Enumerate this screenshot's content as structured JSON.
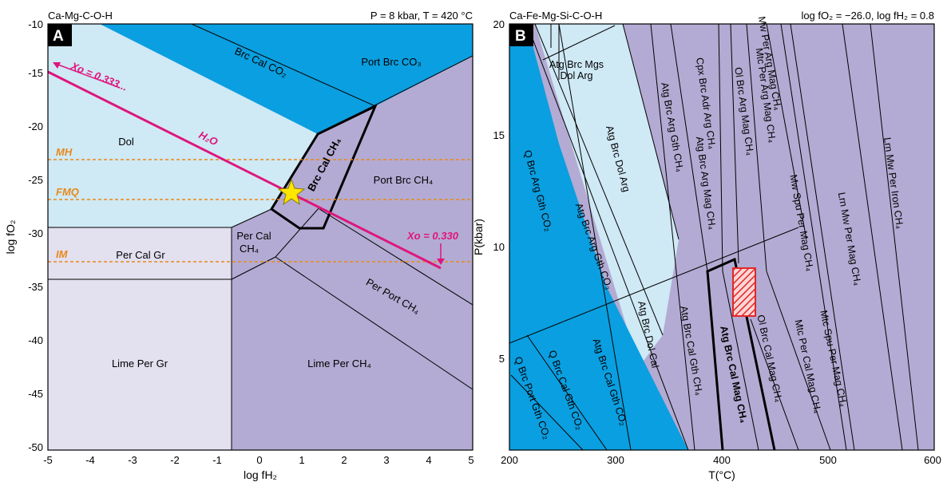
{
  "panel_a": {
    "tag": "A",
    "system": "Ca-Mg-C-O-H",
    "conditions": "P = 8 kbar, T = 420 °C",
    "x_axis_label": "log fH₂",
    "y_axis_label": "log fO₂",
    "x_ticks": [
      "-5",
      "-4",
      "-3",
      "-2",
      "-1",
      "0",
      "1",
      "2",
      "3",
      "4",
      "5"
    ],
    "y_ticks": [
      "-10",
      "-15",
      "-20",
      "-25",
      "-30",
      "-35",
      "-40",
      "-45",
      "-50"
    ],
    "fields": {
      "brc_cal_co2": "Brc Cal CO₂",
      "port_brc_co3": "Port Brc CO₃",
      "dol": "Dol",
      "brc_cal_ch4": "Brc Cal CH₄",
      "port_brc_ch4": "Port Brc CH₄",
      "per_cal_ch4_1": "Per Cal",
      "per_cal_ch4_2": "CH₄",
      "per_cal_gr": "Per Cal Gr",
      "per_port_ch4": "Per Port CH₄",
      "lime_per_gr": "Lime Per Gr",
      "lime_per_ch4": "Lime Per CH₄"
    },
    "buffers": {
      "mh": "MH",
      "fmq": "FMQ",
      "im": "IM"
    },
    "annotations": {
      "h2o": "H₂O",
      "xo_left": "Xo = 0.333...",
      "xo_right": "Xo = 0.330"
    },
    "colors": {
      "light_blue": "#cfe9f5",
      "cyan": "#0a9fe0",
      "lavender": "#b3abd3",
      "pale_lavender": "#e3e0ef",
      "magenta": "#e0147c",
      "orange": "#e8891a",
      "star": "#ffe600"
    }
  },
  "panel_b": {
    "tag": "B",
    "system": "Ca-Fe-Mg-Si-C-O-H",
    "conditions": "log fO₂ = −26.0, log fH₂ = 0.8",
    "x_axis_label": "T(°C)",
    "y_axis_label": "P(kbar)",
    "x_ticks": [
      "200",
      "300",
      "400",
      "500",
      "600"
    ],
    "y_ticks": [
      "20",
      "15",
      "10",
      "5"
    ],
    "fields": {
      "atg_brc_mgs": "Atg Brc Mgs",
      "dol_arg": "Dol Arg",
      "atg_brc_dol_arg": "Atg Brc Dol Arg",
      "q_brc_arg_gth_co2": "Q Brc Arg Gth CO₂",
      "atg_brc_arg_gth_co3": "Atg Brc Arg Gth CO₃",
      "atg_brc_arg_gth_ch4": "Atg Brc Arg Gth CH₄",
      "cpx_brc_adr_arg_ch4": "Cpx Brc Adr Arg CH₄",
      "atg_brc_arg_mag_ch4": "Atg Brc Arg Mag CH₄",
      "ol_brc_arg_mag_ch4": "Ol Brc Arg Mag CH₄",
      "mtc_per_arg_mag_ch4": "Mtc Per Arg Mag CH₄",
      "mw_per_arg_mag_ch4": "Mw Per Arg Mag CH₄",
      "mw_spu_per_mag_ch4": "Mw Spu Per Mag CH₄",
      "lrn_mw_per_mag_ch4": "Lrn Mw Per Mag CH₄",
      "lrn_mw_per_iron_ch4": "Lrn Mw Per Iron CH₄",
      "atg_brc_dol_cal": "Atg Brc Dol Cal",
      "atg_brc_cal_gth_ch4": "Atg Brc Cal Gth CH₄",
      "atg_brc_cal_mag_ch4": "Atg Brc Cal Mag CH₄",
      "ol_brc_cal_mag_ch4": "Ol Brc Cal Mag CH₄",
      "mtc_per_cal_mag_ch4": "Mtc Per Cal Mag CH₄",
      "mtc_spu_per_mag_ch4": "Mtc Spu Per Mag CH₄",
      "q_brc_port_gth_co2": "Q Brc Port Gth CO₂",
      "q_brc_cal_gth_co2": "Q Brc Cal Gth CO₂",
      "atg_brc_cal_gth_co2": "Atg Brc Cal Gth CO₂"
    },
    "colors": {
      "light_blue": "#cfe9f5",
      "cyan": "#0a9fe0",
      "lavender": "#b3abd3",
      "red": "#e02828"
    }
  }
}
